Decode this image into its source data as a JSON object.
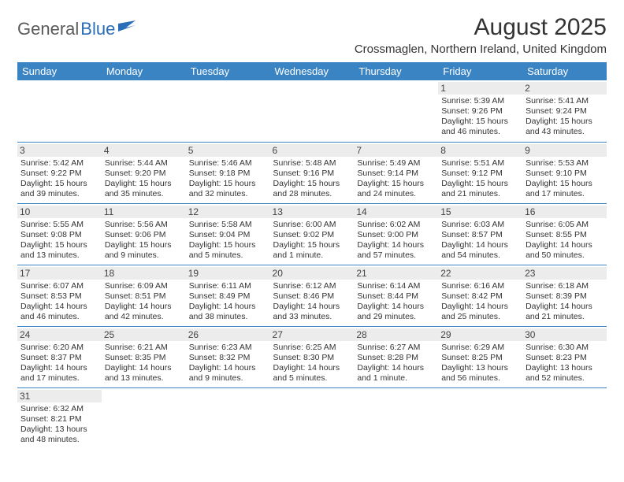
{
  "brand": {
    "part1": "General",
    "part2": "Blue"
  },
  "title": "August 2025",
  "location": "Crossmaglen, Northern Ireland, United Kingdom",
  "colors": {
    "header_bg": "#3b84c4",
    "header_text": "#ffffff",
    "daynum_bg": "#ececec",
    "rule": "#3b84c4",
    "brand_blue": "#2a6db8",
    "brand_grey": "#5a5a5a",
    "text": "#333333",
    "background": "#ffffff"
  },
  "typography": {
    "title_fontsize": 30,
    "location_fontsize": 15,
    "day_header_fontsize": 13,
    "cell_fontsize": 10.5
  },
  "table": {
    "type": "calendar",
    "columns": [
      "Sunday",
      "Monday",
      "Tuesday",
      "Wednesday",
      "Thursday",
      "Friday",
      "Saturday"
    ],
    "weeks": [
      [
        null,
        null,
        null,
        null,
        null,
        {
          "n": "1",
          "sunrise": "5:39 AM",
          "sunset": "9:26 PM",
          "daylight": "15 hours and 46 minutes."
        },
        {
          "n": "2",
          "sunrise": "5:41 AM",
          "sunset": "9:24 PM",
          "daylight": "15 hours and 43 minutes."
        }
      ],
      [
        {
          "n": "3",
          "sunrise": "5:42 AM",
          "sunset": "9:22 PM",
          "daylight": "15 hours and 39 minutes."
        },
        {
          "n": "4",
          "sunrise": "5:44 AM",
          "sunset": "9:20 PM",
          "daylight": "15 hours and 35 minutes."
        },
        {
          "n": "5",
          "sunrise": "5:46 AM",
          "sunset": "9:18 PM",
          "daylight": "15 hours and 32 minutes."
        },
        {
          "n": "6",
          "sunrise": "5:48 AM",
          "sunset": "9:16 PM",
          "daylight": "15 hours and 28 minutes."
        },
        {
          "n": "7",
          "sunrise": "5:49 AM",
          "sunset": "9:14 PM",
          "daylight": "15 hours and 24 minutes."
        },
        {
          "n": "8",
          "sunrise": "5:51 AM",
          "sunset": "9:12 PM",
          "daylight": "15 hours and 21 minutes."
        },
        {
          "n": "9",
          "sunrise": "5:53 AM",
          "sunset": "9:10 PM",
          "daylight": "15 hours and 17 minutes."
        }
      ],
      [
        {
          "n": "10",
          "sunrise": "5:55 AM",
          "sunset": "9:08 PM",
          "daylight": "15 hours and 13 minutes."
        },
        {
          "n": "11",
          "sunrise": "5:56 AM",
          "sunset": "9:06 PM",
          "daylight": "15 hours and 9 minutes."
        },
        {
          "n": "12",
          "sunrise": "5:58 AM",
          "sunset": "9:04 PM",
          "daylight": "15 hours and 5 minutes."
        },
        {
          "n": "13",
          "sunrise": "6:00 AM",
          "sunset": "9:02 PM",
          "daylight": "15 hours and 1 minute."
        },
        {
          "n": "14",
          "sunrise": "6:02 AM",
          "sunset": "9:00 PM",
          "daylight": "14 hours and 57 minutes."
        },
        {
          "n": "15",
          "sunrise": "6:03 AM",
          "sunset": "8:57 PM",
          "daylight": "14 hours and 54 minutes."
        },
        {
          "n": "16",
          "sunrise": "6:05 AM",
          "sunset": "8:55 PM",
          "daylight": "14 hours and 50 minutes."
        }
      ],
      [
        {
          "n": "17",
          "sunrise": "6:07 AM",
          "sunset": "8:53 PM",
          "daylight": "14 hours and 46 minutes."
        },
        {
          "n": "18",
          "sunrise": "6:09 AM",
          "sunset": "8:51 PM",
          "daylight": "14 hours and 42 minutes."
        },
        {
          "n": "19",
          "sunrise": "6:11 AM",
          "sunset": "8:49 PM",
          "daylight": "14 hours and 38 minutes."
        },
        {
          "n": "20",
          "sunrise": "6:12 AM",
          "sunset": "8:46 PM",
          "daylight": "14 hours and 33 minutes."
        },
        {
          "n": "21",
          "sunrise": "6:14 AM",
          "sunset": "8:44 PM",
          "daylight": "14 hours and 29 minutes."
        },
        {
          "n": "22",
          "sunrise": "6:16 AM",
          "sunset": "8:42 PM",
          "daylight": "14 hours and 25 minutes."
        },
        {
          "n": "23",
          "sunrise": "6:18 AM",
          "sunset": "8:39 PM",
          "daylight": "14 hours and 21 minutes."
        }
      ],
      [
        {
          "n": "24",
          "sunrise": "6:20 AM",
          "sunset": "8:37 PM",
          "daylight": "14 hours and 17 minutes."
        },
        {
          "n": "25",
          "sunrise": "6:21 AM",
          "sunset": "8:35 PM",
          "daylight": "14 hours and 13 minutes."
        },
        {
          "n": "26",
          "sunrise": "6:23 AM",
          "sunset": "8:32 PM",
          "daylight": "14 hours and 9 minutes."
        },
        {
          "n": "27",
          "sunrise": "6:25 AM",
          "sunset": "8:30 PM",
          "daylight": "14 hours and 5 minutes."
        },
        {
          "n": "28",
          "sunrise": "6:27 AM",
          "sunset": "8:28 PM",
          "daylight": "14 hours and 1 minute."
        },
        {
          "n": "29",
          "sunrise": "6:29 AM",
          "sunset": "8:25 PM",
          "daylight": "13 hours and 56 minutes."
        },
        {
          "n": "30",
          "sunrise": "6:30 AM",
          "sunset": "8:23 PM",
          "daylight": "13 hours and 52 minutes."
        }
      ],
      [
        {
          "n": "31",
          "sunrise": "6:32 AM",
          "sunset": "8:21 PM",
          "daylight": "13 hours and 48 minutes."
        },
        null,
        null,
        null,
        null,
        null,
        null
      ]
    ],
    "labels": {
      "sunrise": "Sunrise: ",
      "sunset": "Sunset: ",
      "daylight": "Daylight: "
    }
  }
}
